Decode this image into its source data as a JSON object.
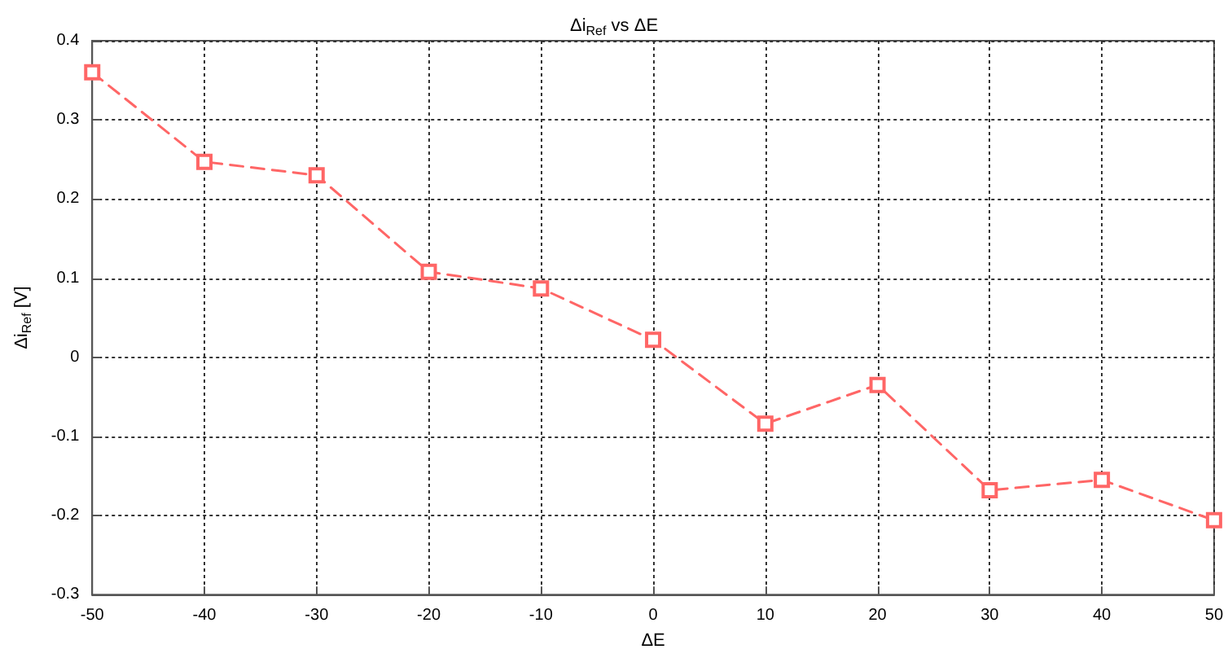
{
  "chart_data": {
    "type": "line",
    "title": "Δi$_{Ref}$ vs ΔE",
    "xlabel": "ΔE",
    "ylabel": "Δi$_{Ref}$ [V]",
    "x": [
      -50,
      -40,
      -30,
      -20,
      -10,
      0,
      10,
      20,
      30,
      40,
      50
    ],
    "series": [
      {
        "color": "#ff6666",
        "values": [
          0.36,
          0.247,
          0.23,
          0.108,
          0.087,
          0.022,
          -0.084,
          -0.035,
          -0.168,
          -0.155,
          -0.206
        ]
      }
    ],
    "xlim": [
      -50,
      50
    ],
    "xticks": [
      -50,
      -40,
      -30,
      -20,
      -10,
      0,
      10,
      20,
      30,
      40,
      50
    ],
    "ylim": [
      -0.3,
      0.4
    ],
    "yticks": [
      -0.3,
      -0.2,
      -0.1,
      0,
      0.1,
      0.2,
      0.3,
      0.4
    ],
    "grid": true,
    "marker": "square",
    "line_style": "dashed"
  }
}
